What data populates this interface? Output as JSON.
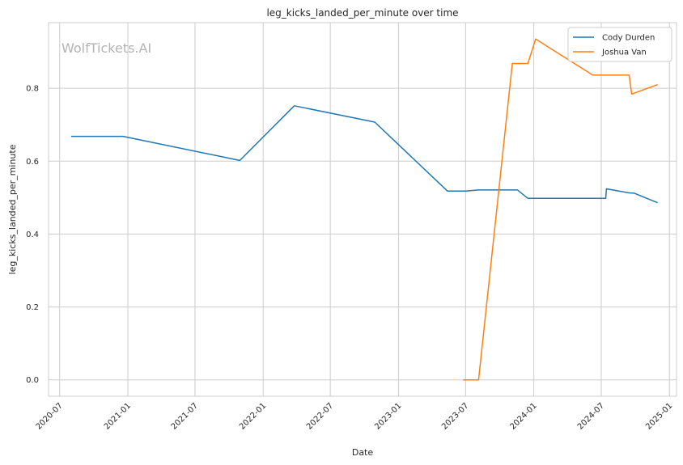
{
  "chart_data": {
    "type": "line",
    "title": "leg_kicks_landed_per_minute over time",
    "xlabel": "Date",
    "ylabel": "leg_kicks_landed_per_minute",
    "watermark": "WolfTickets.AI",
    "x_ticks": [
      "2020-07",
      "2021-01",
      "2021-07",
      "2022-01",
      "2022-07",
      "2023-01",
      "2023-07",
      "2024-01",
      "2024-07",
      "2025-01"
    ],
    "y_ticks": [
      "0.0",
      "0.2",
      "0.4",
      "0.6",
      "0.8"
    ],
    "xlim": [
      "2020-06-01",
      "2025-01-20"
    ],
    "ylim": [
      -0.045,
      0.98
    ],
    "grid": true,
    "legend_position": "top-right",
    "series": [
      {
        "name": "Cody Durden",
        "color": "#1f77b4",
        "points": [
          {
            "x": "2020-08-01",
            "y": 0.668
          },
          {
            "x": "2020-12-19",
            "y": 0.668
          },
          {
            "x": "2021-10-30",
            "y": 0.602
          },
          {
            "x": "2022-03-26",
            "y": 0.752
          },
          {
            "x": "2022-10-29",
            "y": 0.707
          },
          {
            "x": "2023-05-13",
            "y": 0.518
          },
          {
            "x": "2023-07-01",
            "y": 0.518
          },
          {
            "x": "2023-08-05",
            "y": 0.521
          },
          {
            "x": "2023-11-18",
            "y": 0.521
          },
          {
            "x": "2023-12-16",
            "y": 0.498
          },
          {
            "x": "2024-07-13",
            "y": 0.498
          },
          {
            "x": "2024-07-15",
            "y": 0.524
          },
          {
            "x": "2024-09-14",
            "y": 0.513
          },
          {
            "x": "2024-09-28",
            "y": 0.512
          },
          {
            "x": "2024-11-30",
            "y": 0.486
          }
        ]
      },
      {
        "name": "Joshua Van",
        "color": "#ff7f0e",
        "points": [
          {
            "x": "2023-06-24",
            "y": 0.0
          },
          {
            "x": "2023-08-05",
            "y": 0.0
          },
          {
            "x": "2023-11-04",
            "y": 0.868
          },
          {
            "x": "2023-12-16",
            "y": 0.868
          },
          {
            "x": "2024-01-06",
            "y": 0.935
          },
          {
            "x": "2024-06-08",
            "y": 0.836
          },
          {
            "x": "2024-09-14",
            "y": 0.836
          },
          {
            "x": "2024-09-21",
            "y": 0.784
          },
          {
            "x": "2024-11-30",
            "y": 0.81
          }
        ]
      }
    ]
  }
}
